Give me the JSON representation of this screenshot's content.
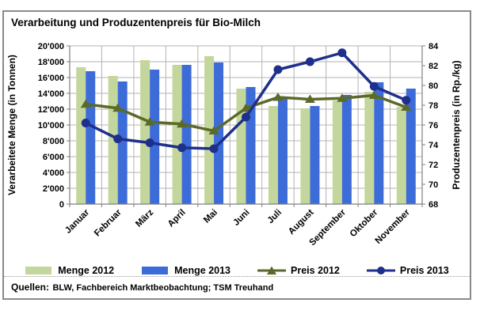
{
  "chart_data": {
    "type": "combo-bar-line",
    "title": "Verarbeitung und Produzentenpreis für Bio-Milch",
    "categories": [
      "Januar",
      "Februar",
      "März",
      "April",
      "Mai",
      "Juni",
      "Juli",
      "August",
      "September",
      "Oktober",
      "November"
    ],
    "left_axis": {
      "title": "Verarbeitete Menge (in Tonnen)",
      "min": 0,
      "max": 20000,
      "step": 2000,
      "tick_labels": [
        "0",
        "2'000",
        "4'000",
        "6'000",
        "8'000",
        "10'000",
        "12'000",
        "14'000",
        "16'000",
        "18'000",
        "20'000"
      ]
    },
    "right_axis": {
      "title": "Produzentenpreis (in Rp./kg)",
      "min": 68,
      "max": 84,
      "step": 2,
      "tick_labels": [
        "68",
        "70",
        "72",
        "74",
        "76",
        "78",
        "80",
        "82",
        "84"
      ]
    },
    "series": [
      {
        "name": "Menge 2012",
        "type": "bar",
        "axis": "left",
        "color": "#c3d69b",
        "values": [
          17300,
          16200,
          18200,
          17600,
          18700,
          14600,
          12400,
          12100,
          13100,
          14200,
          12300
        ]
      },
      {
        "name": "Menge 2013",
        "type": "bar",
        "axis": "left",
        "color": "#3d6cd9",
        "values": [
          16800,
          15500,
          17000,
          17600,
          17900,
          14800,
          13500,
          12400,
          13800,
          15400,
          14600
        ]
      },
      {
        "name": "Preis 2012",
        "type": "line",
        "marker": "triangle",
        "axis": "right",
        "color": "#5a6a28",
        "values": [
          78.1,
          77.7,
          76.3,
          76.1,
          75.4,
          77.7,
          78.8,
          78.6,
          78.7,
          79.0,
          77.8
        ]
      },
      {
        "name": "Preis 2013",
        "type": "line",
        "marker": "circle",
        "axis": "right",
        "color": "#1f2f8c",
        "values": [
          76.2,
          74.6,
          74.2,
          73.7,
          73.6,
          76.8,
          81.6,
          82.4,
          83.3,
          79.9,
          78.5
        ]
      }
    ],
    "grid": "horizontal+vertical",
    "legend_position": "bottom"
  },
  "footer": {
    "label": "Quellen:",
    "text": "BLW, Fachbereich Marktbeobachtung; TSM Treuhand"
  },
  "colors": {
    "grid": "#b3b3b3",
    "axis": "#7f7f7f",
    "panel_border": "#8a8a8a"
  }
}
